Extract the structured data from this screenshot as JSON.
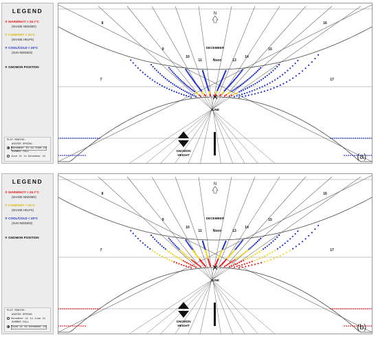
{
  "colors": {
    "warm": "#e81c1c",
    "comfort": "#f2d21a",
    "cool": "#1d2fc8",
    "grid": "#6b6b6b"
  },
  "panels": [
    {
      "id": "a",
      "legend": {
        "title": "LEGEND",
        "items": [
          {
            "line": "WARM/HOT > 26.7°C",
            "sub": "(SHADE NEEDED)",
            "color": "#e81c1c"
          },
          {
            "line": "COMFORT > 20°C",
            "sub": "(SHADE HELPS)",
            "color": "#f2d21a"
          },
          {
            "line": "COOL/COLD < 20°C",
            "sub": "(SUN NEEDED)",
            "color": "#1d2fc8"
          }
        ],
        "gnomon_position": "GNOMON POSITION"
      },
      "plot_months": {
        "title": "PLOT MONTHS:",
        "opt1_head": "WINTER SPRING",
        "opt1_range": "December 21 to June 21",
        "opt2_head": "SUMMER FALL",
        "opt2_range": "June 21 to December 21",
        "selected": 1
      },
      "chart": {
        "hour_labels": [
          "8",
          "9",
          "10",
          "11",
          "Noon",
          "13",
          "14",
          "15",
          "16",
          "7",
          "17"
        ],
        "north": "N",
        "december": "DECEMBER",
        "june": "JUNE",
        "gnomon_height": [
          "GNOMON",
          "HEIGHT"
        ],
        "panel_label": "(a)",
        "dominant_season": "winter-spring"
      }
    },
    {
      "id": "b",
      "legend": {
        "title": "LEGEND",
        "items": [
          {
            "line": "WARM/HOT > 26.7°C",
            "sub": "(SHADE NEEDED)",
            "color": "#e81c1c"
          },
          {
            "line": "COMFORT > 20°C",
            "sub": "(SHADE HELPS)",
            "color": "#f2d21a"
          },
          {
            "line": "COOL/COLD < 20°C",
            "sub": "(SUN NEEDED)",
            "color": "#1d2fc8"
          }
        ],
        "gnomon_position": "GNOMON POSITION"
      },
      "plot_months": {
        "title": "PLOT MONTHS:",
        "opt1_head": "WINTER SPRING",
        "opt1_range": "December 21 to June 21",
        "opt2_head": "SUMMER FALL",
        "opt2_range": "June 21 to December 21",
        "selected": 2
      },
      "chart": {
        "hour_labels": [
          "8",
          "9",
          "10",
          "11",
          "Noon",
          "13",
          "14",
          "15",
          "16",
          "7",
          "17"
        ],
        "north": "N",
        "december": "DECEMBER",
        "june": "JUNE",
        "gnomon_height": [
          "GNOMON",
          "HEIGHT"
        ],
        "panel_label": "(b)",
        "dominant_season": "summer-fall"
      }
    }
  ]
}
